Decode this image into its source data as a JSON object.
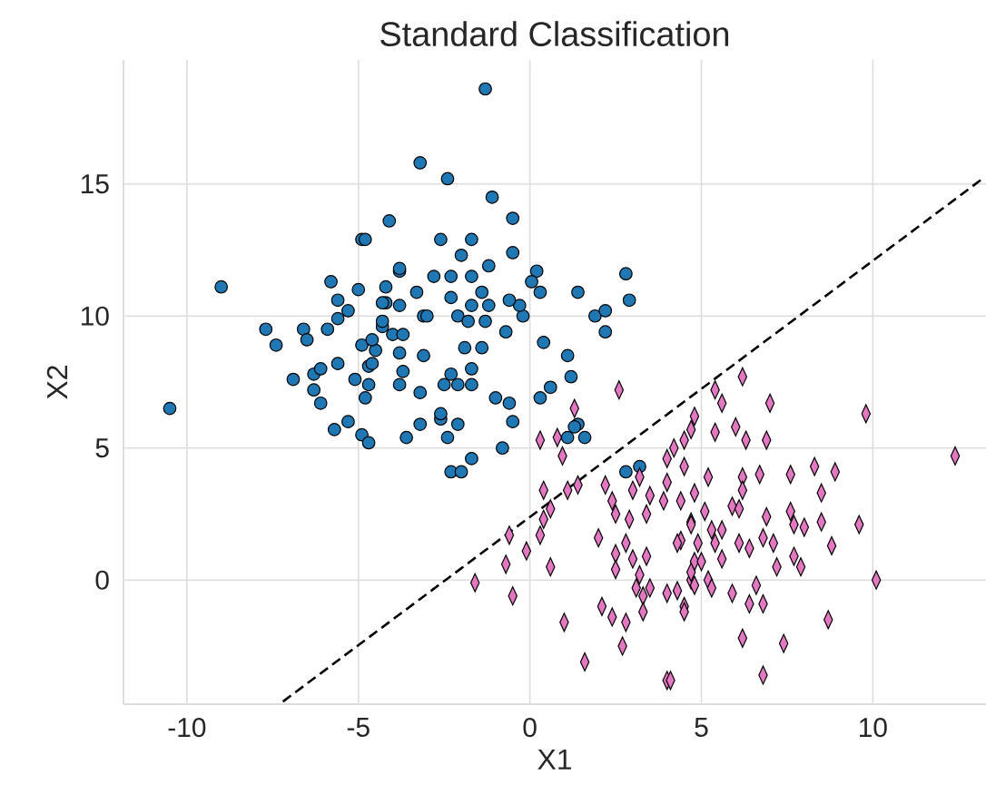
{
  "chart_data": {
    "type": "scatter",
    "title": "Standard Classification",
    "xlabel": "X1",
    "ylabel": "X2",
    "xlim": [
      -11.85,
      13.3
    ],
    "ylim": [
      -4.7,
      19.7
    ],
    "xticks": [
      -10,
      -5,
      0,
      5,
      10
    ],
    "yticks": [
      0,
      5,
      10,
      15
    ],
    "grid": true,
    "series": [
      {
        "marker": "circle",
        "color": "#1f77b4",
        "x": [
          -10.5,
          -9.0,
          -1.3,
          -4.1,
          -4.9,
          -7.7,
          -7.4,
          -6.6,
          -6.5,
          -5.9,
          -6.9,
          -6.3,
          -6.1,
          -5.6,
          -6.3,
          -6.1,
          -5.8,
          -5.6,
          -5.0,
          -5.3,
          -5.6,
          -5.7,
          -5.3,
          -4.9,
          -4.7,
          -5.1,
          -4.8,
          -4.9,
          -4.7,
          -4.5,
          -4.2,
          -3.8,
          -4.0,
          -3.8,
          -3.7,
          -3.6,
          -4.3,
          -3.2,
          -2.4,
          -1.1,
          -0.5,
          -2.6,
          -1.7,
          -2.0,
          -0.5,
          -3.8,
          -1.2,
          0.2,
          0.05,
          0.3,
          1.4,
          2.8,
          2.9,
          1.9,
          2.2,
          2.2,
          0.4,
          1.1,
          1.2,
          0.6,
          0.3,
          1.4,
          1.1,
          1.6,
          -1.0,
          -0.6,
          -0.5,
          -0.8,
          -1.7,
          -2.3,
          -2.0,
          -2.4,
          -2.6,
          -3.2,
          -2.1,
          -2.6,
          -3.2,
          -3.8,
          -2.5,
          -2.1,
          -1.7,
          -1.7,
          -2.3,
          -3.1,
          -4.6,
          -4.7,
          -1.9,
          -1.4,
          -0.7,
          -3.7,
          -4.6,
          -3.1,
          -3.0,
          -2.1,
          -1.8,
          -1.3,
          -4.3,
          -0.2,
          -0.3,
          -0.6,
          -1.2,
          -1.7,
          -2.3,
          -2.8,
          -2.3,
          -1.7,
          -1.4,
          -3.3,
          -4.2,
          -3.8,
          -4.3,
          -4.8,
          2.8,
          3.2,
          1.3
        ],
        "values": [
          6.5,
          11.1,
          18.6,
          13.6,
          12.9,
          9.5,
          8.9,
          9.5,
          9.1,
          9.5,
          7.6,
          7.8,
          8.0,
          8.2,
          7.2,
          6.7,
          11.3,
          10.6,
          11.0,
          10.2,
          9.9,
          5.7,
          6.0,
          5.5,
          5.2,
          7.6,
          6.9,
          8.9,
          8.1,
          8.7,
          10.5,
          11.7,
          9.3,
          8.6,
          7.9,
          5.4,
          9.6,
          15.8,
          15.2,
          14.5,
          13.7,
          12.9,
          12.9,
          12.3,
          12.4,
          11.8,
          11.9,
          11.7,
          11.3,
          10.9,
          10.9,
          11.6,
          10.6,
          10.0,
          10.2,
          9.4,
          9.0,
          8.5,
          7.7,
          7.3,
          6.9,
          5.9,
          5.4,
          5.4,
          6.9,
          6.7,
          6.0,
          5.0,
          4.6,
          4.1,
          4.1,
          5.4,
          6.1,
          5.9,
          5.9,
          6.3,
          7.1,
          7.4,
          7.4,
          7.4,
          7.4,
          8.0,
          7.8,
          8.5,
          8.2,
          7.4,
          8.8,
          8.8,
          9.4,
          9.3,
          9.1,
          10.0,
          10.0,
          10.0,
          9.8,
          9.8,
          9.8,
          10.0,
          10.4,
          10.6,
          10.4,
          10.4,
          10.7,
          11.5,
          11.5,
          11.5,
          10.9,
          10.9,
          11.1,
          10.4,
          10.5,
          12.9,
          4.1,
          4.3,
          5.8
        ]
      },
      {
        "marker": "diamond",
        "color": "#e377c2",
        "x": [
          2.6,
          1.3,
          0.3,
          0.8,
          0.95,
          0.4,
          1.1,
          1.4,
          0.6,
          0.4,
          0.3,
          -0.6,
          -0.1,
          -0.7,
          0.6,
          -1.6,
          -0.5,
          1.0,
          1.6,
          2.1,
          2.4,
          2.8,
          2.7,
          4.0,
          2.2,
          2.4,
          2.5,
          3.0,
          3.2,
          3.5,
          3.4,
          2.9,
          2.0,
          2.5,
          2.8,
          2.5,
          3.0,
          3.4,
          3.2,
          3.1,
          3.3,
          3.3,
          3.5,
          4.0,
          4.3,
          4.5,
          4.0,
          4.2,
          4.5,
          4.7,
          4.8,
          4.5,
          4.0,
          4.4,
          4.7,
          4.4,
          4.8,
          4.7,
          3.9,
          6.2,
          5.4,
          5.6,
          7.0,
          9.8,
          12.4,
          5.4,
          6.0,
          6.3,
          6.9,
          5.2,
          6.2,
          6.7,
          7.6,
          8.3,
          8.9,
          8.5,
          6.2,
          5.9,
          6.1,
          7.6,
          6.9,
          7.7,
          8.0,
          8.5,
          9.6,
          8.8,
          4.8,
          5.1,
          4.7,
          5.3,
          5.6,
          4.3,
          4.9,
          5.4,
          6.1,
          6.4,
          6.8,
          7.1,
          7.7,
          7.9,
          7.2,
          5.6,
          5.0,
          4.7,
          5.2,
          4.8,
          5.3,
          5.9,
          6.4,
          6.8,
          6.6,
          4.5,
          10.1,
          8.7,
          6.2,
          7.4,
          6.8,
          4.1
        ],
        "values": [
          7.2,
          6.5,
          5.3,
          5.4,
          4.7,
          3.4,
          3.4,
          3.6,
          2.7,
          2.3,
          1.7,
          1.7,
          1.1,
          0.6,
          0.5,
          -0.1,
          -0.6,
          -1.6,
          -3.1,
          -1.0,
          -1.4,
          -1.6,
          -2.5,
          -3.8,
          3.6,
          3.0,
          2.5,
          3.4,
          3.9,
          3.2,
          2.5,
          2.3,
          1.6,
          1.0,
          1.4,
          0.4,
          0.8,
          0.9,
          0.2,
          -0.3,
          -0.6,
          -1.2,
          -0.3,
          -0.5,
          -0.4,
          -1.0,
          4.6,
          5.0,
          5.3,
          5.7,
          6.2,
          4.3,
          3.7,
          3.0,
          2.2,
          1.5,
          0.7,
          0.0,
          3.0,
          7.7,
          7.2,
          6.7,
          6.7,
          6.3,
          4.7,
          5.6,
          5.8,
          5.3,
          5.3,
          3.9,
          3.9,
          4.0,
          4.0,
          4.3,
          4.1,
          3.3,
          3.4,
          2.8,
          2.7,
          2.6,
          2.4,
          2.1,
          2.0,
          2.2,
          2.1,
          1.3,
          3.3,
          2.6,
          2.1,
          1.9,
          1.9,
          1.4,
          1.4,
          1.4,
          1.4,
          1.2,
          1.6,
          1.4,
          0.9,
          0.5,
          0.5,
          0.8,
          0.7,
          0.3,
          0.0,
          -0.2,
          -0.3,
          -0.5,
          -0.9,
          -0.9,
          -0.2,
          -1.2,
          0.0,
          -1.5,
          -2.2,
          -2.4,
          -3.6,
          -3.8
        ]
      },
      {
        "type": "line",
        "line_style": "dashed",
        "color": "#000000",
        "x": [
          -7.2,
          13.2
        ],
        "values": [
          -4.6,
          15.2
        ]
      }
    ]
  }
}
